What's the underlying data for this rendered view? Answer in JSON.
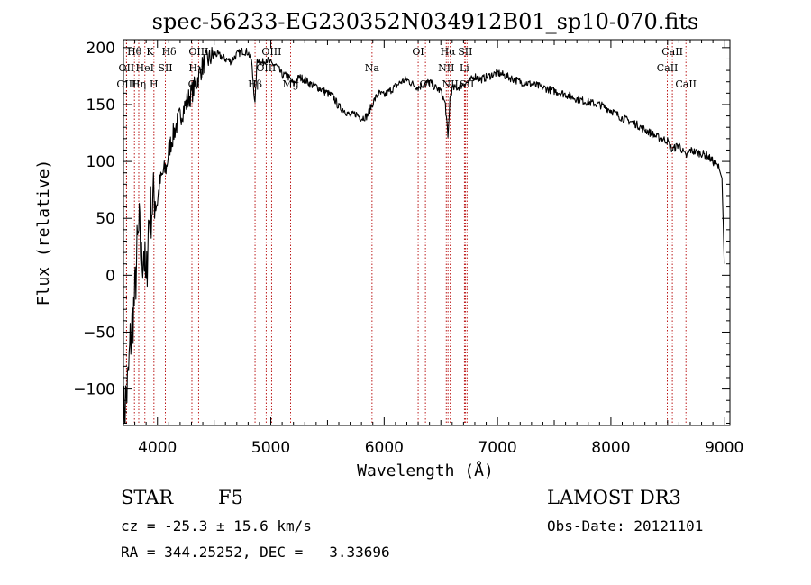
{
  "chart_data": {
    "type": "line",
    "title": "spec-56233-EG230352N034912B01_sp10-070.fits",
    "xlabel": "Wavelength (Å)",
    "ylabel": "Flux (relative)",
    "xlim": [
      3700,
      9050
    ],
    "ylim": [
      -132,
      207
    ],
    "xticks": [
      4000,
      5000,
      6000,
      7000,
      8000,
      9000
    ],
    "yticks": [
      -100,
      -50,
      0,
      50,
      100,
      150,
      200
    ],
    "series": [
      {
        "x": [
          3700,
          3720,
          3740,
          3760,
          3780,
          3800,
          3820,
          3840,
          3860,
          3880,
          3900,
          3920,
          3940,
          3960,
          3980,
          4000,
          4020,
          4050,
          4080,
          4100,
          4130,
          4160,
          4200,
          4250,
          4300,
          4340,
          4380,
          4420,
          4460,
          4500,
          4550,
          4600,
          4650,
          4700,
          4750,
          4800,
          4830,
          4861,
          4880,
          4920,
          4960,
          5000,
          5050,
          5100,
          5150,
          5200,
          5250,
          5300,
          5350,
          5400,
          5450,
          5500,
          5550,
          5600,
          5650,
          5700,
          5750,
          5800,
          5850,
          5893,
          5920,
          5950,
          6000,
          6050,
          6100,
          6150,
          6200,
          6250,
          6300,
          6350,
          6400,
          6450,
          6500,
          6540,
          6563,
          6580,
          6600,
          6650,
          6700,
          6750,
          6800,
          6850,
          6900,
          6950,
          7000,
          7050,
          7100,
          7150,
          7200,
          7300,
          7400,
          7500,
          7600,
          7700,
          7800,
          7900,
          8000,
          8100,
          8200,
          8300,
          8400,
          8500,
          8540,
          8600,
          8662,
          8700,
          8750,
          8800,
          8850,
          8900,
          8950,
          8980,
          9000
        ],
        "y": [
          -125,
          -110,
          -95,
          -60,
          -40,
          -20,
          20,
          40,
          10,
          25,
          -15,
          45,
          55,
          65,
          70,
          65,
          80,
          90,
          95,
          110,
          120,
          130,
          140,
          150,
          160,
          168,
          180,
          188,
          190,
          195,
          193,
          190,
          188,
          194,
          197,
          196,
          188,
          150,
          190,
          186,
          190,
          186,
          184,
          176,
          175,
          168,
          174,
          172,
          168,
          166,
          163,
          160,
          157,
          148,
          145,
          140,
          142,
          138,
          140,
          150,
          155,
          160,
          158,
          162,
          166,
          170,
          172,
          168,
          165,
          168,
          170,
          165,
          162,
          150,
          120,
          155,
          164,
          165,
          168,
          170,
          175,
          172,
          174,
          176,
          178,
          176,
          174,
          172,
          170,
          168,
          165,
          162,
          159,
          155,
          152,
          150,
          145,
          138,
          134,
          128,
          122,
          118,
          110,
          115,
          104,
          110,
          108,
          107,
          105,
          100,
          95,
          85,
          10
        ]
      }
    ],
    "lines": [
      {
        "label": "Hθ",
        "x": 3797,
        "row": 0
      },
      {
        "label": "OII",
        "x": 3727,
        "row": 1
      },
      {
        "label": "OIII",
        "x": 3727,
        "row": 2
      },
      {
        "label": "K",
        "x": 3934,
        "row": 0
      },
      {
        "label": "HeI",
        "x": 3889,
        "row": 1
      },
      {
        "label": "Hη",
        "x": 3835,
        "row": 2
      },
      {
        "label": "Hδ",
        "x": 4102,
        "row": 0
      },
      {
        "label": "SII",
        "x": 4070,
        "row": 1
      },
      {
        "label": "H",
        "x": 3969,
        "row": 2
      },
      {
        "label": "OIII",
        "x": 4363,
        "row": 0
      },
      {
        "label": "Hγ",
        "x": 4340,
        "row": 1
      },
      {
        "label": "G",
        "x": 4304,
        "row": 2
      },
      {
        "label": "OIII",
        "x": 5007,
        "row": 0
      },
      {
        "label": "OIII",
        "x": 4959,
        "row": 1
      },
      {
        "label": "Hβ",
        "x": 4861,
        "row": 2
      },
      {
        "label": "Mg",
        "x": 5175,
        "row": 2
      },
      {
        "label": "Na",
        "x": 5893,
        "row": 1
      },
      {
        "label": "OI",
        "x": 6300,
        "row": 0
      },
      {
        "label": "OI",
        "x": 6364,
        "row": 2
      },
      {
        "label": "Hα",
        "x": 6563,
        "row": 0
      },
      {
        "label": "SII",
        "x": 6716,
        "row": 0
      },
      {
        "label": "NII",
        "x": 6548,
        "row": 1
      },
      {
        "label": "Li",
        "x": 6708,
        "row": 1
      },
      {
        "label": "NII",
        "x": 6583,
        "row": 2
      },
      {
        "label": "SII",
        "x": 6731,
        "row": 2
      },
      {
        "label": "CaII",
        "x": 8542,
        "row": 0
      },
      {
        "label": "CaII",
        "x": 8498,
        "row": 1
      },
      {
        "label": "CaII",
        "x": 8662,
        "row": 2
      }
    ]
  },
  "info": {
    "class": "STAR",
    "subclass": "F5",
    "survey": "LAMOST DR3",
    "redshift": "cz = -25.3 ± 15.6 km/s",
    "obs_date": "Obs-Date: 20121101",
    "coords": "RA = 344.25252, DEC =   3.33696"
  }
}
